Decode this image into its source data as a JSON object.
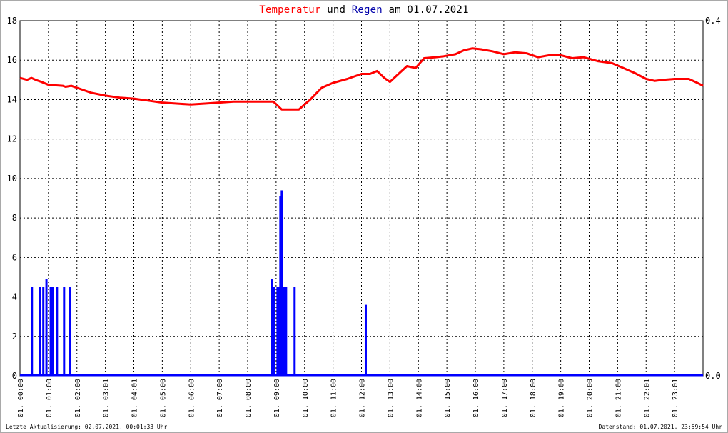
{
  "title": {
    "part1": "Temperatur",
    "part2": " und ",
    "part3": "Regen",
    "part4": " am 01.07.2021"
  },
  "footer": {
    "left": "Letzte Aktualisierung: 02.07.2021, 00:01:33 Uhr",
    "right": "Datenstand: 01.07.2021, 23:59:54 Uhr"
  },
  "colors": {
    "temperature": "#ff0000",
    "rain": "#0000ff",
    "title_temp": "#ff0000",
    "title_rain": "#0000aa"
  },
  "chart_data": {
    "type": "line",
    "y_left": {
      "min": 0,
      "max": 18,
      "ticks": [
        "0",
        "2",
        "4",
        "6",
        "8",
        "10",
        "12",
        "14",
        "16",
        "18"
      ]
    },
    "y_right": {
      "min": 0,
      "max": 0.4,
      "ticks": [
        "0.0",
        "0.4"
      ]
    },
    "x": {
      "min": 0,
      "max": 24,
      "unit": "hour"
    },
    "x_ticks": [
      {
        "h": 0.0,
        "label": "01. 00:00"
      },
      {
        "h": 1.0,
        "label": "01. 01:00"
      },
      {
        "h": 2.0,
        "label": "01. 02:00"
      },
      {
        "h": 3.0,
        "label": "01. 03:01"
      },
      {
        "h": 4.0,
        "label": "01. 04:01"
      },
      {
        "h": 5.0,
        "label": "01. 05:00"
      },
      {
        "h": 6.0,
        "label": "01. 06:00"
      },
      {
        "h": 7.0,
        "label": "01. 07:00"
      },
      {
        "h": 8.0,
        "label": "01. 08:00"
      },
      {
        "h": 9.0,
        "label": "01. 09:00"
      },
      {
        "h": 10.0,
        "label": "01. 10:00"
      },
      {
        "h": 11.0,
        "label": "01. 11:00"
      },
      {
        "h": 12.0,
        "label": "01. 12:00"
      },
      {
        "h": 13.0,
        "label": "01. 13:00"
      },
      {
        "h": 14.0,
        "label": "01. 14:00"
      },
      {
        "h": 15.0,
        "label": "01. 15:00"
      },
      {
        "h": 16.0,
        "label": "01. 16:00"
      },
      {
        "h": 17.0,
        "label": "01. 17:00"
      },
      {
        "h": 18.0,
        "label": "01. 18:00"
      },
      {
        "h": 19.0,
        "label": "01. 19:00"
      },
      {
        "h": 20.0,
        "label": "01. 20:00"
      },
      {
        "h": 21.0,
        "label": "01. 21:00"
      },
      {
        "h": 22.0,
        "label": "01. 22:01"
      },
      {
        "h": 23.0,
        "label": "01. 23:01"
      }
    ],
    "grid": true,
    "series": [
      {
        "name": "Temperatur",
        "axis": "left",
        "style": "line",
        "points": [
          [
            0.0,
            15.1
          ],
          [
            0.25,
            15.0
          ],
          [
            0.4,
            15.1
          ],
          [
            0.55,
            15.0
          ],
          [
            0.75,
            14.9
          ],
          [
            1.0,
            14.75
          ],
          [
            1.5,
            14.7
          ],
          [
            1.6,
            14.65
          ],
          [
            1.8,
            14.7
          ],
          [
            2.0,
            14.6
          ],
          [
            2.5,
            14.35
          ],
          [
            3.0,
            14.2
          ],
          [
            3.5,
            14.1
          ],
          [
            4.0,
            14.05
          ],
          [
            4.5,
            13.95
          ],
          [
            5.0,
            13.85
          ],
          [
            5.5,
            13.8
          ],
          [
            6.0,
            13.75
          ],
          [
            6.5,
            13.8
          ],
          [
            7.0,
            13.85
          ],
          [
            7.5,
            13.9
          ],
          [
            8.0,
            13.9
          ],
          [
            8.9,
            13.9
          ],
          [
            9.05,
            13.7
          ],
          [
            9.2,
            13.5
          ],
          [
            9.8,
            13.5
          ],
          [
            10.2,
            14.0
          ],
          [
            10.6,
            14.6
          ],
          [
            11.0,
            14.85
          ],
          [
            11.5,
            15.05
          ],
          [
            12.0,
            15.3
          ],
          [
            12.3,
            15.3
          ],
          [
            12.55,
            15.45
          ],
          [
            12.8,
            15.1
          ],
          [
            13.0,
            14.9
          ],
          [
            13.3,
            15.3
          ],
          [
            13.6,
            15.7
          ],
          [
            13.9,
            15.6
          ],
          [
            14.2,
            16.1
          ],
          [
            14.6,
            16.15
          ],
          [
            14.9,
            16.2
          ],
          [
            15.3,
            16.3
          ],
          [
            15.6,
            16.5
          ],
          [
            15.9,
            16.6
          ],
          [
            16.2,
            16.55
          ],
          [
            16.6,
            16.45
          ],
          [
            17.0,
            16.3
          ],
          [
            17.4,
            16.4
          ],
          [
            17.8,
            16.35
          ],
          [
            18.2,
            16.15
          ],
          [
            18.6,
            16.25
          ],
          [
            19.0,
            16.25
          ],
          [
            19.4,
            16.1
          ],
          [
            19.8,
            16.15
          ],
          [
            20.3,
            15.95
          ],
          [
            20.8,
            15.85
          ],
          [
            21.2,
            15.6
          ],
          [
            21.6,
            15.35
          ],
          [
            22.0,
            15.05
          ],
          [
            22.3,
            14.95
          ],
          [
            22.6,
            15.0
          ],
          [
            23.0,
            15.05
          ],
          [
            23.5,
            15.05
          ],
          [
            23.8,
            14.85
          ],
          [
            24.0,
            14.7
          ]
        ]
      },
      {
        "name": "Regen",
        "axis": "left",
        "style": "bars",
        "points": [
          [
            0.42,
            4.5
          ],
          [
            0.7,
            4.5
          ],
          [
            0.82,
            4.5
          ],
          [
            0.93,
            4.9
          ],
          [
            1.08,
            4.5
          ],
          [
            1.15,
            4.5
          ],
          [
            1.3,
            4.5
          ],
          [
            1.55,
            4.5
          ],
          [
            1.75,
            4.5
          ],
          [
            8.85,
            4.9
          ],
          [
            8.92,
            4.5
          ],
          [
            9.05,
            4.5
          ],
          [
            9.1,
            4.5
          ],
          [
            9.15,
            9.1
          ],
          [
            9.2,
            9.4
          ],
          [
            9.28,
            4.5
          ],
          [
            9.35,
            4.5
          ],
          [
            9.65,
            4.5
          ],
          [
            12.15,
            3.6
          ]
        ]
      }
    ]
  }
}
